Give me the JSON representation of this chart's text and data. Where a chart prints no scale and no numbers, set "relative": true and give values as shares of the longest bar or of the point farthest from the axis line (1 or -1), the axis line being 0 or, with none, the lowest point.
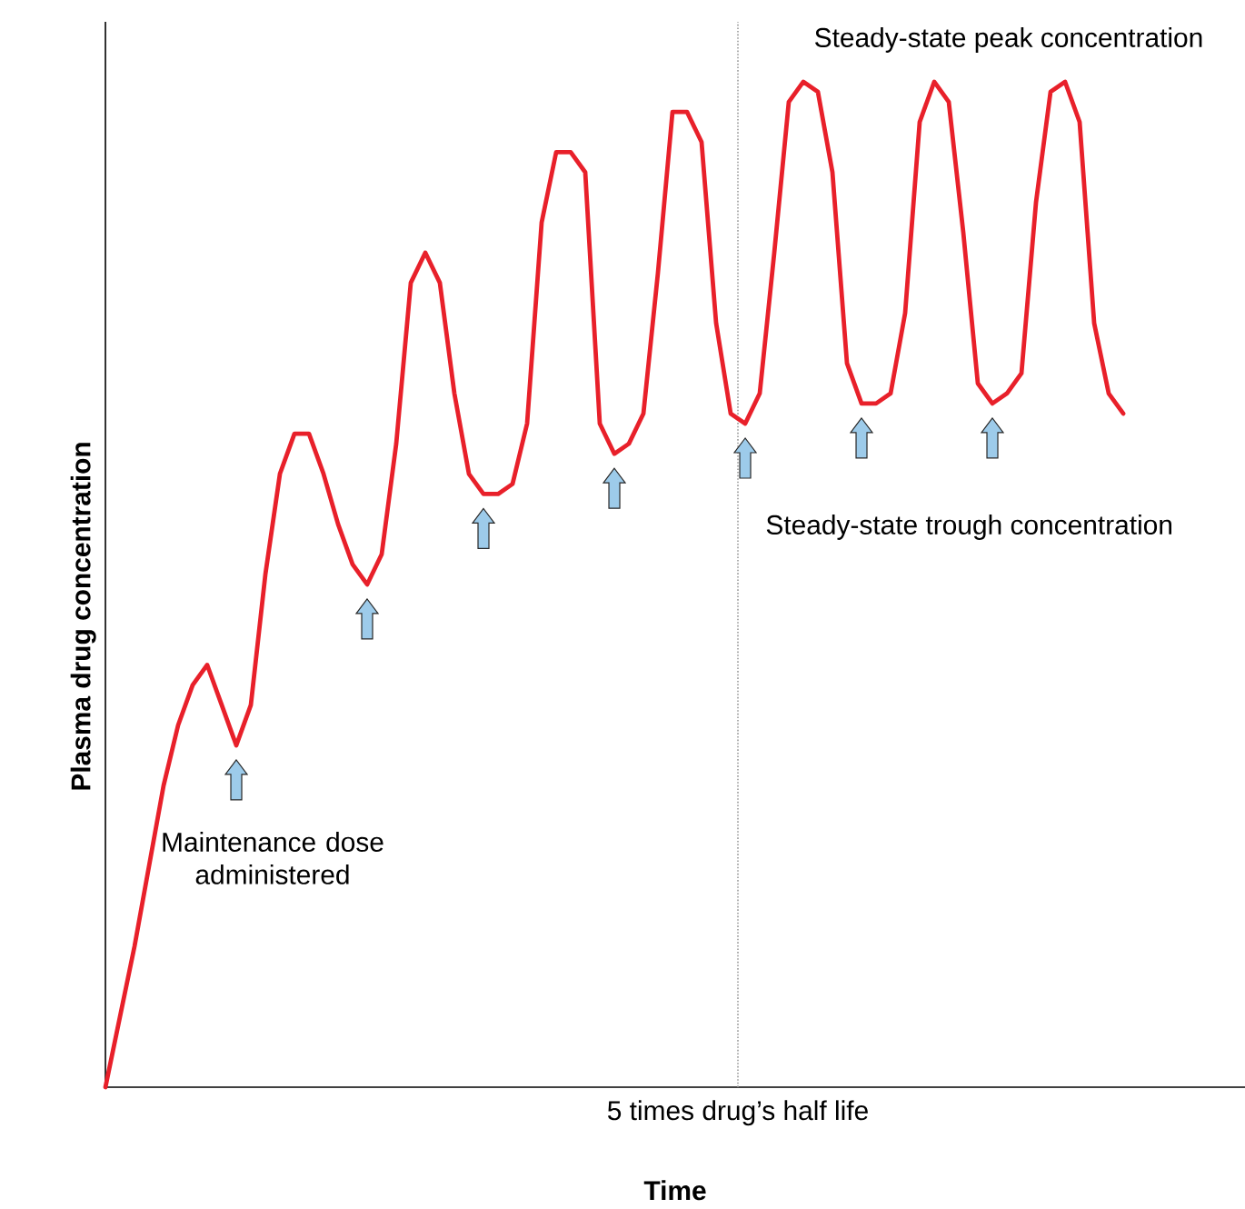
{
  "chart_data": {
    "type": "line",
    "relative": true,
    "xlabel": "Time",
    "ylabel": "Plasma drug concentration",
    "categories": [
      null,
      null,
      null,
      null,
      null,
      null,
      null,
      null,
      null,
      null,
      null,
      null,
      null,
      null,
      null,
      null,
      null,
      null,
      null,
      null,
      null,
      null,
      null,
      null,
      null,
      null,
      null,
      null,
      null,
      null,
      null,
      null,
      null,
      null,
      null,
      null,
      null,
      null,
      null,
      null,
      null,
      null,
      null,
      null,
      null,
      null,
      null,
      null,
      null,
      null,
      null,
      null,
      null,
      null,
      null,
      null,
      null,
      null,
      null,
      null,
      null,
      null,
      null,
      null,
      null,
      null,
      null,
      null,
      null,
      null,
      null
    ],
    "series": [
      {
        "color": "#e8202a",
        "values": [
          0,
          0.07,
          0.14,
          0.22,
          0.3,
          0.36,
          0.4,
          0.42,
          0.38,
          0.34,
          0.38,
          0.51,
          0.61,
          0.65,
          0.65,
          0.61,
          0.56,
          0.52,
          0.5,
          0.53,
          0.64,
          0.8,
          0.83,
          0.8,
          0.69,
          0.61,
          0.59,
          0.59,
          0.6,
          0.66,
          0.86,
          0.93,
          0.93,
          0.91,
          0.66,
          0.63,
          0.64,
          0.67,
          0.81,
          0.97,
          0.97,
          0.94,
          0.76,
          0.67,
          0.66,
          0.69,
          0.83,
          0.98,
          1,
          0.99,
          0.91,
          0.72,
          0.68,
          0.68,
          0.69,
          0.77,
          0.96,
          1,
          0.98,
          0.85,
          0.7,
          0.68,
          0.69,
          0.71,
          0.88,
          0.99,
          1,
          0.96,
          0.76,
          0.69,
          0.67
        ]
      }
    ],
    "annotations": [
      "Maintenance dose administered",
      "Steady-state peak concentration",
      "Steady-state trough concentration",
      "5 times drug’s half life"
    ]
  }
}
